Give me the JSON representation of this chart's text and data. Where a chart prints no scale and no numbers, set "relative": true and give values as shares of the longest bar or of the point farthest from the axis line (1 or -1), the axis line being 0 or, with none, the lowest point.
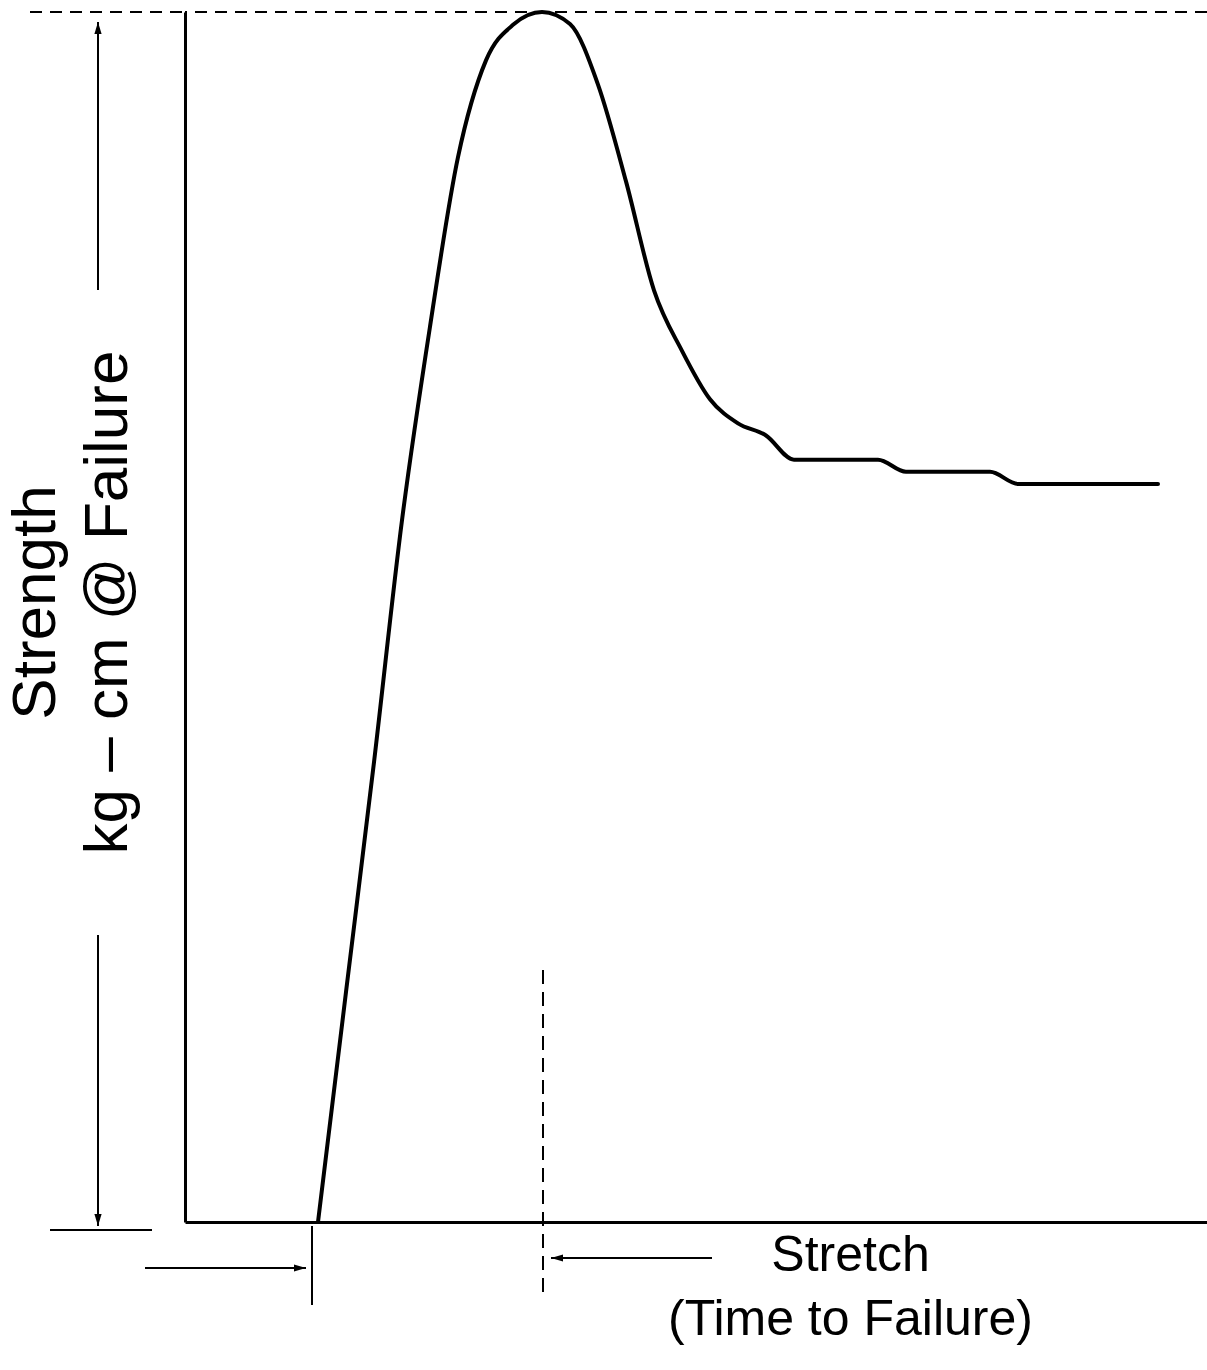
{
  "chart_data": {
    "type": "line",
    "relative": true,
    "xlabel": "Stretch\n(Time to Failure)",
    "ylabel": "Strength\nkg – cm @ Failure",
    "categories": [
      null,
      null,
      null,
      null,
      null,
      null,
      null,
      null,
      null,
      null,
      null,
      null,
      null,
      null,
      null,
      null,
      null,
      null,
      null,
      null,
      null,
      null,
      null,
      null,
      null,
      null,
      null,
      null,
      null,
      null,
      null,
      null,
      null,
      null,
      null,
      null
    ],
    "series": [
      {
        "color": "#000000",
        "values": [
          null,
          null,
          null,
          null,
          0,
          0.19,
          0.38,
          0.58,
          0.74,
          0.88,
          0.96,
          0.99,
          1.0,
          0.99,
          0.94,
          0.86,
          0.77,
          0.72,
          0.68,
          0.66,
          0.65,
          0.63,
          0.63,
          0.63,
          0.63,
          0.62,
          0.62,
          0.62,
          0.62,
          0.61,
          0.61,
          0.61,
          0.61,
          0.61,
          0.61,
          null
        ]
      }
    ],
    "ref_lines": [
      {
        "axis": "y",
        "value": 1,
        "line_style": "dashed",
        "color": "#000000"
      }
    ],
    "grid": false,
    "marker": "none",
    "line_style": "solid"
  }
}
